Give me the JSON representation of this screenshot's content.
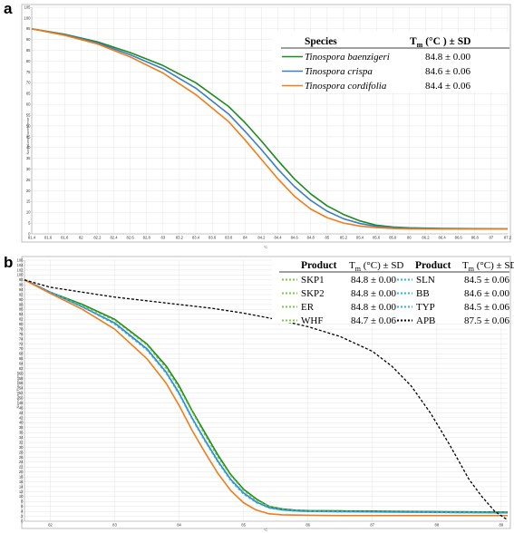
{
  "chart_data": [
    {
      "panel_label": "a",
      "type": "line",
      "xlabel": "°C",
      "ylabel": "Normalized Fluorescence",
      "xlim": [
        81.4,
        87.2
      ],
      "ylim": [
        0,
        105
      ],
      "x_ticks": [
        "81.4",
        "81.6",
        "81.8",
        "82",
        "82.2",
        "82.4",
        "82.6",
        "82.8",
        "83",
        "83.2",
        "83.4",
        "83.6",
        "83.8",
        "84",
        "84.2",
        "84.4",
        "84.6",
        "84.8",
        "85",
        "85.2",
        "85.4",
        "85.6",
        "85.8",
        "86",
        "86.2",
        "86.4",
        "86.6",
        "86.8",
        "87",
        "87.2"
      ],
      "y_ticks": [
        "0",
        "5",
        "10",
        "15",
        "20",
        "25",
        "30",
        "35",
        "40",
        "45",
        "50",
        "55",
        "60",
        "65",
        "70",
        "75",
        "80",
        "85",
        "90",
        "95",
        "100",
        "105"
      ],
      "grid": true,
      "legend": {
        "placement": "top-right",
        "header_species": "Species",
        "header_tm_main": "T",
        "header_tm_sub": "m",
        "header_tm_rest": " (°C ) ± SD",
        "entries": [
          {
            "name": "Tinospora baenzigeri",
            "tm": "84.8 ± 0.00"
          },
          {
            "name": "Tinospora crispa",
            "tm": "84.6 ± 0.06"
          },
          {
            "name": "Tinospora cordifolia",
            "tm": "84.4 ± 0.06"
          }
        ]
      },
      "series": [
        {
          "name": "Tinospora baenzigeri",
          "color": "#1e8b1e",
          "x": [
            81.4,
            81.8,
            82.2,
            82.6,
            83.0,
            83.4,
            83.8,
            84.0,
            84.2,
            84.4,
            84.6,
            84.8,
            85.0,
            85.2,
            85.4,
            85.6,
            85.8,
            86.0,
            86.4,
            86.8,
            87.2
          ],
          "y": [
            95,
            92.5,
            89,
            84,
            78,
            70,
            59,
            51.5,
            43,
            34,
            25.5,
            18.5,
            13,
            9,
            6,
            4,
            3.2,
            2.8,
            2.5,
            2.4,
            2.3
          ]
        },
        {
          "name": "Tinospora crispa",
          "color": "#3a7dc8",
          "x": [
            81.4,
            81.8,
            82.2,
            82.6,
            83.0,
            83.4,
            83.8,
            84.0,
            84.2,
            84.4,
            84.6,
            84.8,
            85.0,
            85.2,
            85.4,
            85.6,
            85.8,
            86.0,
            86.4,
            86.8,
            87.2
          ],
          "y": [
            95,
            92.3,
            88.5,
            83,
            76.5,
            67.5,
            55.5,
            47.5,
            39,
            30,
            22,
            15.5,
            10.5,
            7,
            4.8,
            3.5,
            2.9,
            2.6,
            2.4,
            2.3,
            2.3
          ]
        },
        {
          "name": "Tinospora cordifolia",
          "color": "#f07d1a",
          "x": [
            81.4,
            81.8,
            82.2,
            82.6,
            83.0,
            83.4,
            83.8,
            84.0,
            84.2,
            84.4,
            84.6,
            84.8,
            85.0,
            85.2,
            85.4,
            85.6,
            85.8,
            86.0,
            86.4,
            86.8,
            87.2
          ],
          "y": [
            95,
            92,
            88,
            82,
            74.5,
            64.5,
            52,
            43.5,
            34.5,
            25.5,
            17.5,
            11.5,
            7.5,
            5,
            3.6,
            2.9,
            2.5,
            2.3,
            2.2,
            2.2,
            2.2
          ]
        }
      ]
    },
    {
      "panel_label": "b",
      "type": "line",
      "xlabel": "°C",
      "ylabel": "Normalized Fluorescence",
      "xlim": [
        81.6,
        89.1
      ],
      "ylim": [
        0,
        106
      ],
      "x_ticks": [
        "82",
        "83",
        "84",
        "85",
        "86",
        "87",
        "88",
        "89"
      ],
      "y_ticks": [
        "0",
        "2",
        "4",
        "6",
        "8",
        "10",
        "12",
        "14",
        "16",
        "18",
        "20",
        "22",
        "24",
        "26",
        "28",
        "30",
        "32",
        "34",
        "36",
        "38",
        "40",
        "42",
        "44",
        "46",
        "48",
        "50",
        "52",
        "54",
        "56",
        "58",
        "60",
        "62",
        "64",
        "66",
        "68",
        "70",
        "72",
        "74",
        "76",
        "78",
        "80",
        "82",
        "84",
        "86",
        "88",
        "90",
        "92",
        "94",
        "96",
        "98",
        "100",
        "102",
        "104",
        "106"
      ],
      "grid": true,
      "legend": {
        "placement": "top-right",
        "header_product": "Product",
        "header_tm_main": "T",
        "header_tm_sub": "m",
        "header_tm_rest": " (°C) ± SD",
        "left_entries": [
          {
            "name": "SKP1",
            "tm": "84.8 ± 0.00",
            "color": "#7ac943"
          },
          {
            "name": "SKP2",
            "tm": "84.8 ± 0.00",
            "color": "#7ac943"
          },
          {
            "name": "ER",
            "tm": "84.8 ± 0.00",
            "color": "#7ac943"
          },
          {
            "name": "WHF",
            "tm": "84.7 ± 0.06",
            "color": "#7ac943"
          }
        ],
        "right_entries": [
          {
            "name": "SLN",
            "tm": "84.5 ± 0.06",
            "color": "#29b6e6"
          },
          {
            "name": "BB",
            "tm": "84.6 ± 0.00",
            "color": "#29b6e6"
          },
          {
            "name": "TYP",
            "tm": "84.5 ± 0.06",
            "color": "#29b6e6"
          },
          {
            "name": "APB",
            "tm": "87.5 ± 0.06",
            "color": "#000000"
          }
        ]
      },
      "series": [
        {
          "name": "green group",
          "color": "#1e8b1e",
          "dash": false,
          "x": [
            81.6,
            82.0,
            82.5,
            83.0,
            83.5,
            83.8,
            84.0,
            84.2,
            84.4,
            84.6,
            84.8,
            85.0,
            85.2,
            85.4,
            85.6,
            85.8,
            86.0,
            86.5,
            87.0,
            87.5,
            88.0,
            88.5,
            89.1
          ],
          "y": [
            98,
            93,
            88,
            82,
            72,
            63,
            55,
            45,
            36,
            27,
            19,
            13,
            9,
            6,
            5,
            4.5,
            4.3,
            4.2,
            4.1,
            4.0,
            3.9,
            3.8,
            3.7
          ]
        },
        {
          "name": "light green dashed",
          "color": "#7ac943",
          "dash": true,
          "x": [
            81.6,
            82.0,
            82.5,
            83.0,
            83.5,
            83.8,
            84.0,
            84.2,
            84.4,
            84.6,
            84.8,
            85.0,
            85.2,
            85.4,
            85.6,
            85.8,
            86.0,
            86.5,
            87.0,
            87.5,
            88.0,
            88.5,
            89.1
          ],
          "y": [
            98,
            93,
            87.5,
            81.5,
            71.5,
            62,
            54,
            44.5,
            35,
            26,
            18.5,
            12.5,
            8.5,
            6,
            4.8,
            4.4,
            4.2,
            4.1,
            4.0,
            3.9,
            3.8,
            3.7,
            3.6
          ]
        },
        {
          "name": "blue group",
          "color": "#3a7dc8",
          "dash": false,
          "x": [
            81.6,
            82.0,
            82.5,
            83.0,
            83.5,
            83.8,
            84.0,
            84.2,
            84.4,
            84.6,
            84.8,
            85.0,
            85.2,
            85.4,
            85.6,
            85.8,
            86.0,
            86.5,
            87.0,
            87.5,
            88.0,
            88.5,
            89.1
          ],
          "y": [
            98,
            93,
            87,
            80.5,
            70,
            60.5,
            52,
            42,
            33,
            24.5,
            17,
            11.5,
            7.8,
            5.5,
            4.6,
            4.2,
            4.0,
            3.9,
            3.8,
            3.7,
            3.6,
            3.5,
            3.4
          ]
        },
        {
          "name": "cyan dashed",
          "color": "#29b6e6",
          "dash": true,
          "x": [
            81.6,
            82.0,
            82.5,
            83.0,
            83.5,
            83.8,
            84.0,
            84.2,
            84.4,
            84.6,
            84.8,
            85.0,
            85.2,
            85.4,
            85.6,
            85.8,
            86.0,
            86.5,
            87.0,
            87.5,
            88.0,
            88.5,
            89.1
          ],
          "y": [
            98,
            93,
            87,
            80,
            69.5,
            60,
            51.5,
            41.5,
            32.5,
            24,
            16.5,
            11,
            7.5,
            5.3,
            4.5,
            4.1,
            3.9,
            3.8,
            3.7,
            3.6,
            3.5,
            3.4,
            3.3
          ]
        },
        {
          "name": "orange",
          "color": "#f07d1a",
          "dash": false,
          "x": [
            81.6,
            82.0,
            82.5,
            83.0,
            83.5,
            83.8,
            84.0,
            84.2,
            84.4,
            84.6,
            84.8,
            85.0,
            85.2,
            85.4,
            85.6,
            85.8,
            86.0,
            86.5,
            87.0,
            87.5,
            88.0,
            88.5,
            89.1
          ],
          "y": [
            98,
            92.5,
            86,
            78,
            66,
            56,
            47,
            37,
            28,
            19.5,
            12.5,
            7.5,
            4.5,
            3.0,
            2.6,
            2.5,
            2.4,
            2.3,
            2.3,
            2.3,
            2.3,
            2.3,
            2.3
          ]
        },
        {
          "name": "APB",
          "color": "#000000",
          "dash": true,
          "x": [
            81.6,
            82.0,
            82.5,
            83.0,
            83.5,
            84.0,
            84.5,
            85.0,
            85.5,
            86.0,
            86.5,
            87.0,
            87.3,
            87.6,
            87.9,
            88.2,
            88.5,
            88.7,
            88.9,
            89.1
          ],
          "y": [
            98,
            95,
            93,
            91,
            89.5,
            88,
            86.5,
            84.5,
            82,
            79,
            75,
            69,
            63,
            55,
            44,
            31,
            17,
            10,
            4,
            0.5
          ]
        }
      ]
    }
  ]
}
